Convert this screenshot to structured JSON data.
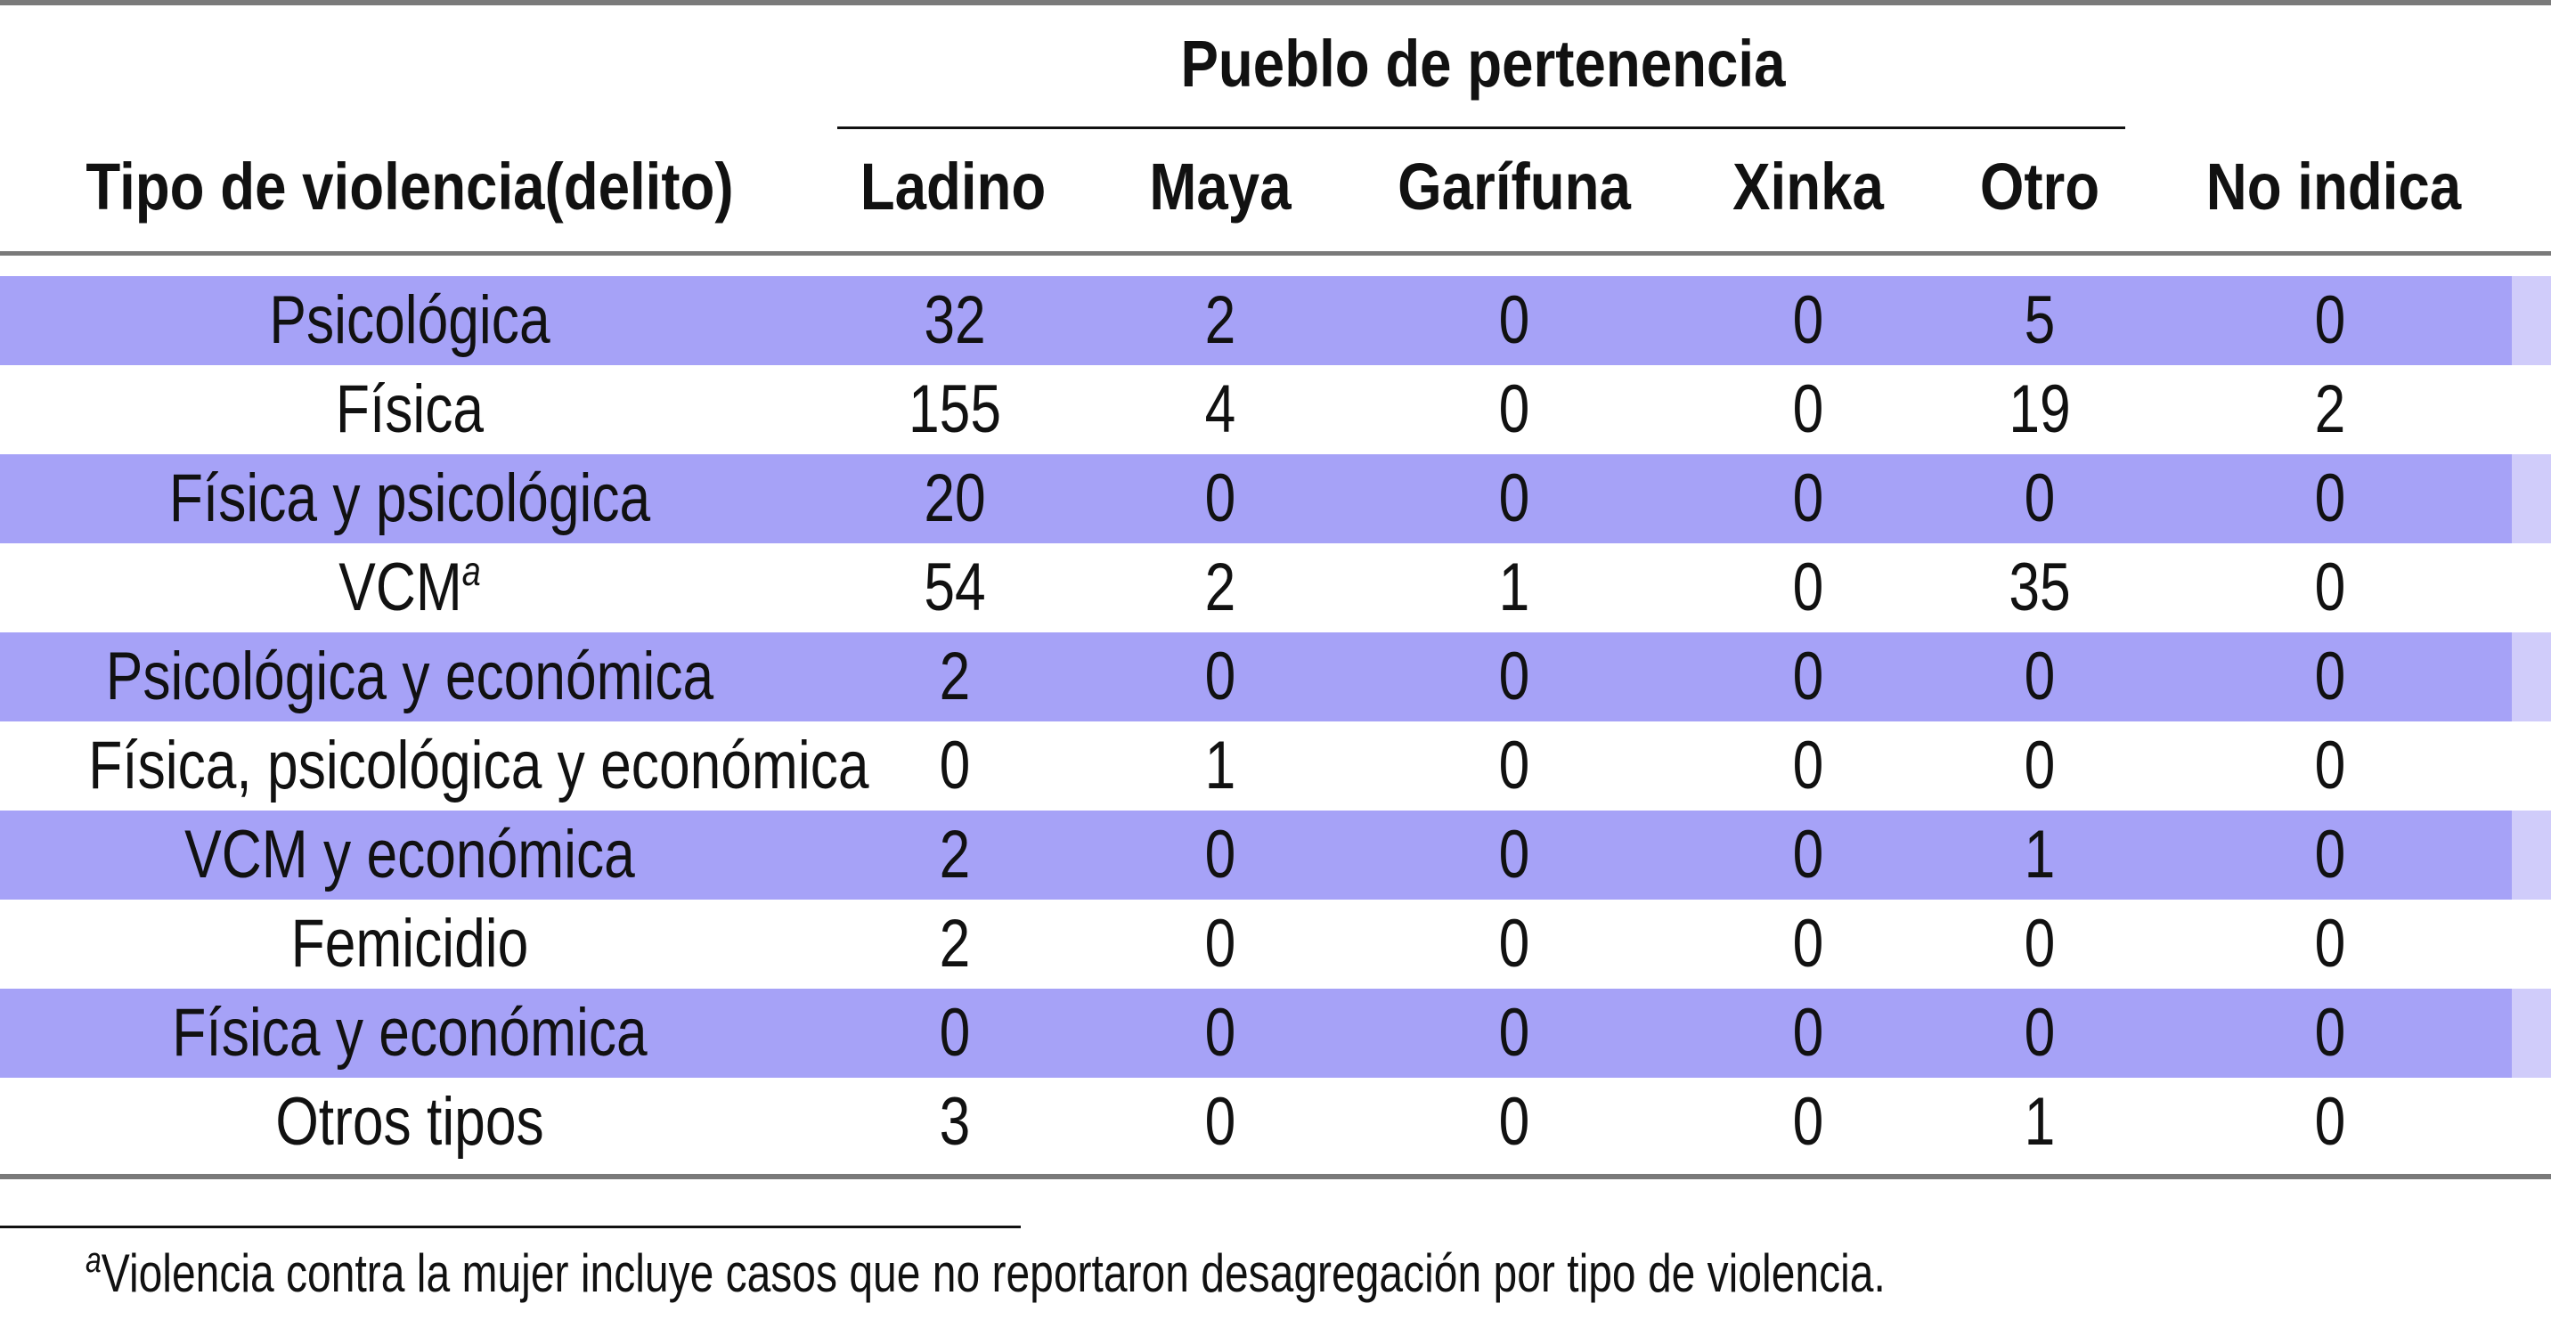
{
  "table": {
    "group_header": "Pueblo de pertenencia",
    "row_header": "Tipo de violencia(delito)",
    "columns": [
      "Ladino",
      "Maya",
      "Garífuna",
      "Xinka",
      "Otro",
      "No indica"
    ],
    "rows": [
      {
        "label": "Psicológica",
        "values": [
          "32",
          "2",
          "0",
          "0",
          "5",
          "0"
        ]
      },
      {
        "label": "Física",
        "values": [
          "155",
          "4",
          "0",
          "0",
          "19",
          "2"
        ]
      },
      {
        "label": "Física y psicológica",
        "values": [
          "20",
          "0",
          "0",
          "0",
          "0",
          "0"
        ]
      },
      {
        "label": "VCM",
        "note": "a",
        "values": [
          "54",
          "2",
          "1",
          "0",
          "35",
          "0"
        ]
      },
      {
        "label": "Psicológica y económica",
        "values": [
          "2",
          "0",
          "0",
          "0",
          "0",
          "0"
        ]
      },
      {
        "label": "Física, psicológica y económica",
        "values": [
          "0",
          "1",
          "0",
          "0",
          "0",
          "0"
        ]
      },
      {
        "label": "VCM y económica",
        "values": [
          "2",
          "0",
          "0",
          "0",
          "1",
          "0"
        ]
      },
      {
        "label": "Femicidio",
        "values": [
          "2",
          "0",
          "0",
          "0",
          "0",
          "0"
        ]
      },
      {
        "label": "Física y económica",
        "values": [
          "0",
          "0",
          "0",
          "0",
          "0",
          "0"
        ]
      },
      {
        "label": "Otros tipos",
        "values": [
          "3",
          "0",
          "0",
          "0",
          "1",
          "0"
        ]
      }
    ]
  },
  "footnote": {
    "marker": "a",
    "text": "Violencia contra la mujer incluye casos que no reportaron desagregación por tipo de violencia."
  },
  "colors": {
    "row_shade": "#a6a2f7",
    "row_shade_edge": "#d0ccfa",
    "rule": "#7a7a7a"
  }
}
